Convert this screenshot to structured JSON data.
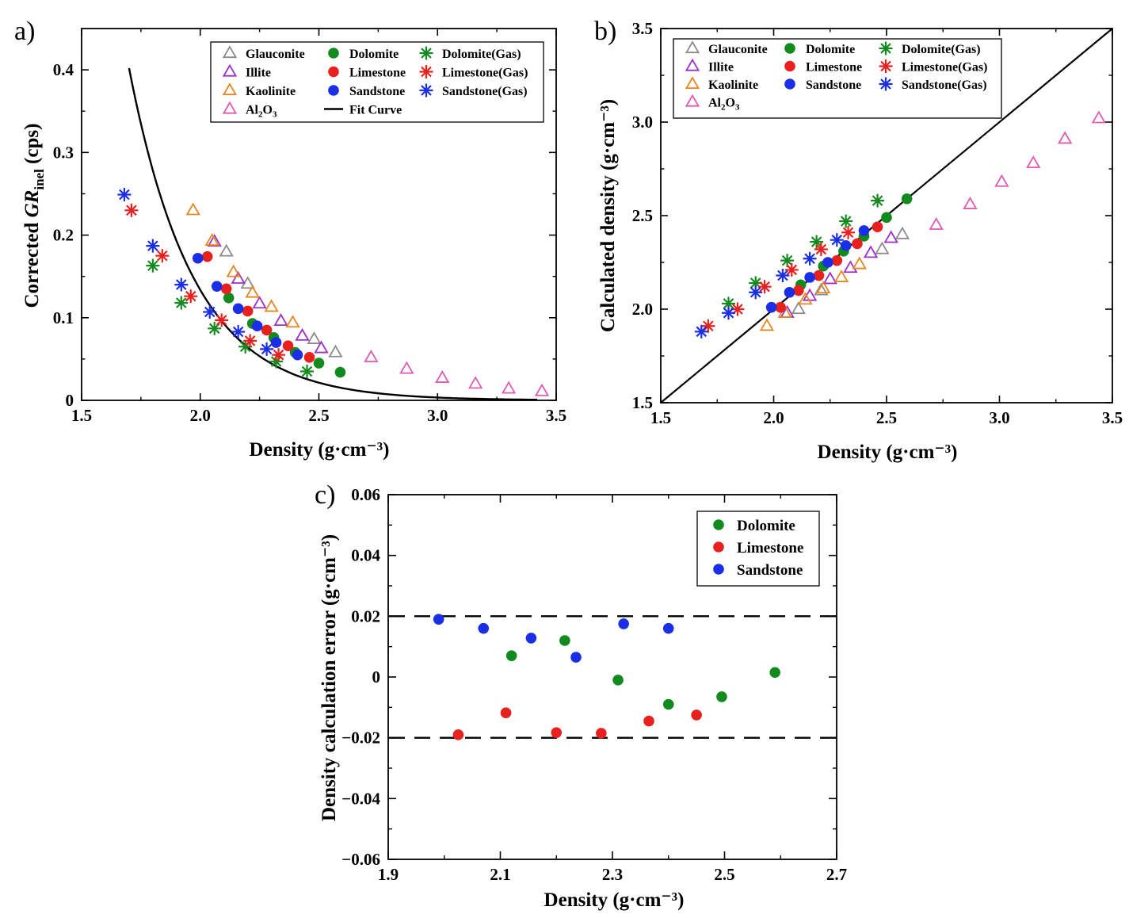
{
  "colors": {
    "glauconite": "#8c8c8c",
    "illite": "#9b30c8",
    "kaolinite": "#e6861e",
    "al2o3": "#e05ab4",
    "dolomite": "#138a1e",
    "limestone": "#e8201e",
    "sandstone": "#1a2ee6",
    "fit": "#000000"
  },
  "chart_data": [
    {
      "panel": "a)",
      "type": "scatter",
      "title": "",
      "xlabel": "Density (g·cm⁻³)",
      "ylabel_parts": [
        "Corrected ",
        "GR",
        "inel",
        " (cps)"
      ],
      "xlim": [
        1.5,
        3.5
      ],
      "ylim": [
        0,
        0.45
      ],
      "xticks": [
        1.5,
        2.0,
        2.5,
        3.0,
        3.5
      ],
      "xtick_labels": [
        "1.5",
        "2.0",
        "2.5",
        "3.0",
        "3.5"
      ],
      "yticks": [
        0,
        0.1,
        0.2,
        0.3,
        0.4
      ],
      "ytick_labels": [
        "0",
        "0.1",
        "0.2",
        "0.3",
        "0.4"
      ],
      "legend_position": "top-right",
      "legend_cols": [
        [
          "Glauconite",
          "Illite",
          "Kaolinite",
          "Al2O3"
        ],
        [
          "Dolomite",
          "Limestone",
          "Sandstone",
          "Fit Curve"
        ],
        [
          "Dolomite(Gas)",
          "Limestone(Gas)",
          "Sandstone(Gas)"
        ]
      ],
      "fit_curve": {
        "x_range": [
          1.7,
          3.42
        ],
        "formula": "0.402*exp(-3.67*(x-1.7))"
      },
      "series": [
        {
          "name": "Glauconite",
          "marker": "triangle",
          "color_key": "glauconite",
          "x": [
            2.11,
            2.2,
            2.48,
            2.57
          ],
          "y": [
            0.18,
            0.141,
            0.074,
            0.058
          ]
        },
        {
          "name": "Illite",
          "marker": "triangle",
          "color_key": "illite",
          "x": [
            2.06,
            2.16,
            2.25,
            2.34,
            2.43,
            2.51
          ],
          "y": [
            0.192,
            0.147,
            0.117,
            0.096,
            0.078,
            0.063
          ]
        },
        {
          "name": "Kaolinite",
          "marker": "triangle",
          "color_key": "kaolinite",
          "x": [
            1.97,
            2.05,
            2.14,
            2.22,
            2.3,
            2.39
          ],
          "y": [
            0.23,
            0.193,
            0.155,
            0.13,
            0.113,
            0.094
          ]
        },
        {
          "name": "Al2O3",
          "marker": "triangle",
          "color_key": "al2o3",
          "x": [
            2.72,
            2.87,
            3.02,
            3.16,
            3.3,
            3.44
          ],
          "y": [
            0.052,
            0.038,
            0.027,
            0.02,
            0.014,
            0.011
          ]
        },
        {
          "name": "Dolomite",
          "marker": "circle",
          "color_key": "dolomite",
          "x": [
            2.12,
            2.22,
            2.31,
            2.4,
            2.5,
            2.59
          ],
          "y": [
            0.124,
            0.093,
            0.076,
            0.058,
            0.045,
            0.034
          ]
        },
        {
          "name": "Limestone",
          "marker": "circle",
          "color_key": "limestone",
          "x": [
            2.03,
            2.11,
            2.2,
            2.28,
            2.37,
            2.46
          ],
          "y": [
            0.174,
            0.135,
            0.108,
            0.085,
            0.066,
            0.052
          ]
        },
        {
          "name": "Sandstone",
          "marker": "circle",
          "color_key": "sandstone",
          "x": [
            1.99,
            2.07,
            2.16,
            2.24,
            2.32,
            2.41
          ],
          "y": [
            0.172,
            0.138,
            0.111,
            0.09,
            0.07,
            0.055
          ]
        },
        {
          "name": "Dolomite(Gas)",
          "marker": "asterisk",
          "color_key": "dolomite",
          "x": [
            1.8,
            1.92,
            2.06,
            2.19,
            2.32,
            2.45
          ],
          "y": [
            0.163,
            0.118,
            0.087,
            0.065,
            0.047,
            0.035
          ]
        },
        {
          "name": "Limestone(Gas)",
          "marker": "asterisk",
          "color_key": "limestone",
          "x": [
            1.71,
            1.84,
            1.96,
            2.09,
            2.21,
            2.33
          ],
          "y": [
            0.23,
            0.175,
            0.126,
            0.097,
            0.072,
            0.055
          ]
        },
        {
          "name": "Sandstone(Gas)",
          "marker": "asterisk",
          "color_key": "sandstone",
          "x": [
            1.68,
            1.8,
            1.92,
            2.04,
            2.16,
            2.28
          ],
          "y": [
            0.249,
            0.187,
            0.14,
            0.107,
            0.083,
            0.062
          ]
        }
      ]
    },
    {
      "panel": "b)",
      "type": "scatter",
      "title": "",
      "xlabel": "Density (g·cm⁻³)",
      "ylabel": "Calculated density (g·cm⁻³)",
      "xlim": [
        1.5,
        3.5
      ],
      "ylim": [
        1.5,
        3.5
      ],
      "xticks": [
        1.5,
        2.0,
        2.5,
        3.0,
        3.5
      ],
      "xtick_labels": [
        "1.5",
        "2.0",
        "2.5",
        "3.0",
        "3.5"
      ],
      "yticks": [
        1.5,
        2.0,
        2.5,
        3.0,
        3.5
      ],
      "ytick_labels": [
        "1.5",
        "2.0",
        "2.5",
        "3.0",
        "3.5"
      ],
      "legend_position": "top-left",
      "legend_cols": [
        [
          "Glauconite",
          "Illite",
          "Kaolinite",
          "Al2O3"
        ],
        [
          "Dolomite",
          "Limestone",
          "Sandstone"
        ],
        [
          "Dolomite(Gas)",
          "Limestone(Gas)",
          "Sandstone(Gas)"
        ]
      ],
      "reference_line": {
        "x": [
          1.5,
          3.5
        ],
        "y": [
          1.5,
          3.5
        ]
      },
      "series": [
        {
          "name": "Glauconite",
          "marker": "triangle",
          "color_key": "glauconite",
          "x": [
            2.11,
            2.21,
            2.48,
            2.57
          ],
          "y": [
            2.0,
            2.1,
            2.32,
            2.4
          ]
        },
        {
          "name": "Illite",
          "marker": "triangle",
          "color_key": "illite",
          "x": [
            2.06,
            2.16,
            2.25,
            2.34,
            2.43,
            2.52
          ],
          "y": [
            1.98,
            2.07,
            2.16,
            2.22,
            2.3,
            2.38
          ]
        },
        {
          "name": "Kaolinite",
          "marker": "triangle",
          "color_key": "kaolinite",
          "x": [
            1.97,
            2.05,
            2.14,
            2.22,
            2.3,
            2.38
          ],
          "y": [
            1.91,
            1.98,
            2.05,
            2.11,
            2.17,
            2.24
          ]
        },
        {
          "name": "Al2O3",
          "marker": "triangle",
          "color_key": "al2o3",
          "x": [
            2.72,
            2.87,
            3.01,
            3.15,
            3.29,
            3.44
          ],
          "y": [
            2.45,
            2.56,
            2.68,
            2.78,
            2.91,
            3.02
          ]
        },
        {
          "name": "Dolomite",
          "marker": "circle",
          "color_key": "dolomite",
          "x": [
            2.12,
            2.22,
            2.31,
            2.4,
            2.5,
            2.59
          ],
          "y": [
            2.13,
            2.23,
            2.31,
            2.39,
            2.49,
            2.59
          ]
        },
        {
          "name": "Limestone",
          "marker": "circle",
          "color_key": "limestone",
          "x": [
            2.03,
            2.11,
            2.2,
            2.28,
            2.37,
            2.46
          ],
          "y": [
            2.01,
            2.1,
            2.18,
            2.26,
            2.35,
            2.44
          ]
        },
        {
          "name": "Sandstone",
          "marker": "circle",
          "color_key": "sandstone",
          "x": [
            1.99,
            2.07,
            2.16,
            2.24,
            2.32,
            2.4
          ],
          "y": [
            2.01,
            2.09,
            2.17,
            2.25,
            2.34,
            2.42
          ]
        },
        {
          "name": "Dolomite(Gas)",
          "marker": "asterisk",
          "color_key": "dolomite",
          "x": [
            1.8,
            1.92,
            2.06,
            2.19,
            2.32,
            2.46
          ],
          "y": [
            2.03,
            2.14,
            2.26,
            2.36,
            2.47,
            2.58
          ]
        },
        {
          "name": "Limestone(Gas)",
          "marker": "asterisk",
          "color_key": "limestone",
          "x": [
            1.71,
            1.84,
            1.96,
            2.08,
            2.21,
            2.33
          ],
          "y": [
            1.91,
            2.0,
            2.12,
            2.21,
            2.32,
            2.41
          ]
        },
        {
          "name": "Sandstone(Gas)",
          "marker": "asterisk",
          "color_key": "sandstone",
          "x": [
            1.68,
            1.8,
            1.92,
            2.04,
            2.16,
            2.28
          ],
          "y": [
            1.88,
            1.98,
            2.09,
            2.18,
            2.27,
            2.37
          ]
        }
      ]
    },
    {
      "panel": "c)",
      "type": "scatter",
      "title": "",
      "xlabel": "Density (g·cm⁻³)",
      "ylabel": "Density calculation error (g·cm⁻³)",
      "xlim": [
        1.9,
        2.7
      ],
      "ylim": [
        -0.06,
        0.06
      ],
      "xticks": [
        1.9,
        2.1,
        2.3,
        2.5,
        2.7
      ],
      "xtick_labels": [
        "1.9",
        "2.1",
        "2.3",
        "2.5",
        "2.7"
      ],
      "yticks": [
        -0.06,
        -0.04,
        -0.02,
        0,
        0.02,
        0.04,
        0.06
      ],
      "ytick_labels": [
        "−0.06",
        "−0.04",
        "−0.02",
        "0",
        "0.02",
        "0.04",
        "0.06"
      ],
      "legend_position": "top-right",
      "legend_items": [
        "Dolomite",
        "Limestone",
        "Sandstone"
      ],
      "reference_lines": [
        0.02,
        -0.02
      ],
      "series": [
        {
          "name": "Dolomite",
          "marker": "circle",
          "color_key": "dolomite",
          "x": [
            2.12,
            2.215,
            2.31,
            2.4,
            2.495,
            2.59
          ],
          "y": [
            0.007,
            0.012,
            -0.001,
            -0.009,
            -0.0065,
            0.0015
          ]
        },
        {
          "name": "Limestone",
          "marker": "circle",
          "color_key": "limestone",
          "x": [
            2.025,
            2.11,
            2.2,
            2.28,
            2.365,
            2.45
          ],
          "y": [
            -0.019,
            -0.0118,
            -0.0183,
            -0.0185,
            -0.0145,
            -0.0125
          ]
        },
        {
          "name": "Sandstone",
          "marker": "circle",
          "color_key": "sandstone",
          "x": [
            1.99,
            2.07,
            2.155,
            2.235,
            2.32,
            2.4
          ],
          "y": [
            0.019,
            0.016,
            0.0128,
            0.0065,
            0.0175,
            0.016
          ]
        }
      ]
    }
  ]
}
